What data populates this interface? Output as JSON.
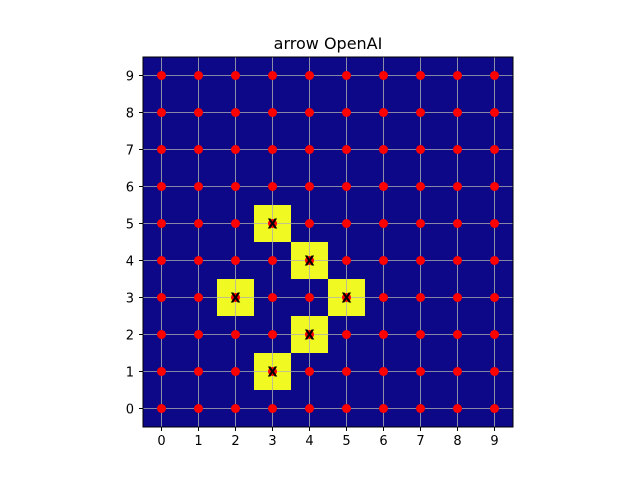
{
  "chart_data": {
    "type": "heatmap",
    "title": "arrow OpenAI",
    "xlabel": "",
    "ylabel": "",
    "x_ticks": [
      0,
      1,
      2,
      3,
      4,
      5,
      6,
      7,
      8,
      9
    ],
    "y_ticks": [
      0,
      1,
      2,
      3,
      4,
      5,
      6,
      7,
      8,
      9
    ],
    "xlim": [
      -0.5,
      9.5
    ],
    "ylim": [
      -0.5,
      9.5
    ],
    "grid": true,
    "background_color": "#0d0887",
    "highlight_color": "#f0f921",
    "point_color": "#ff0000",
    "grid_color": "#b0b0b0",
    "highlighted_cells": [
      {
        "x": 3,
        "y": 5,
        "label": "X"
      },
      {
        "x": 4,
        "y": 4,
        "label": "X"
      },
      {
        "x": 2,
        "y": 3,
        "label": "X"
      },
      {
        "x": 5,
        "y": 3,
        "label": "X"
      },
      {
        "x": 4,
        "y": 2,
        "label": "X"
      },
      {
        "x": 3,
        "y": 1,
        "label": "X"
      }
    ],
    "points_grid": {
      "x_range": [
        0,
        9
      ],
      "y_range": [
        0,
        9
      ]
    }
  }
}
